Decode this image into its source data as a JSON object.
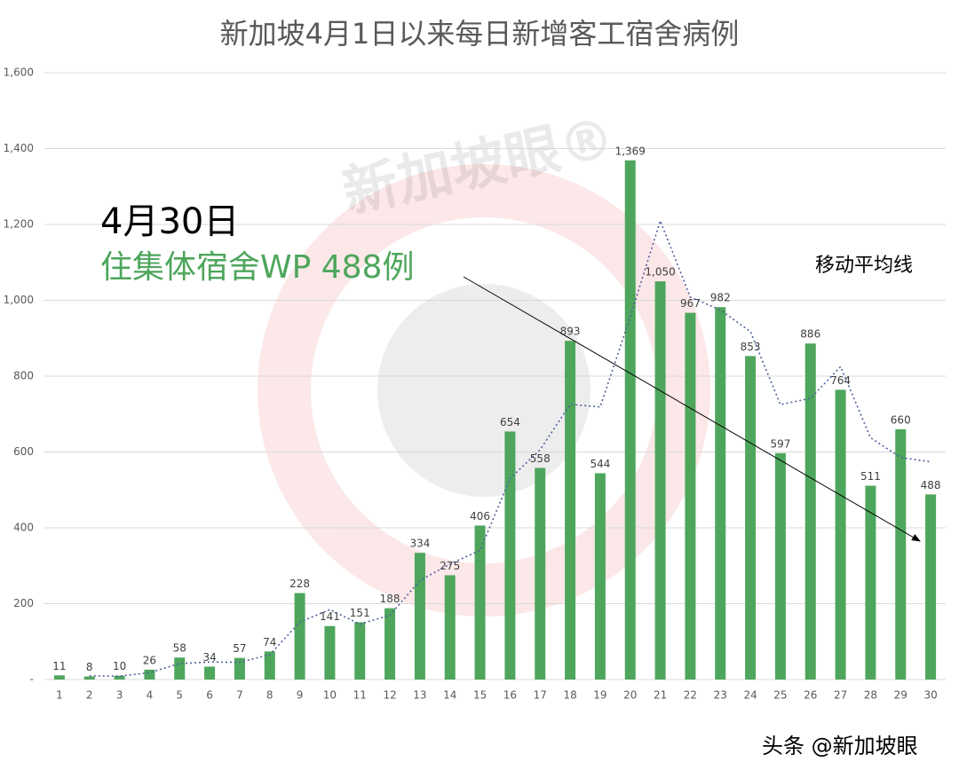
{
  "chart_data": {
    "type": "bar",
    "title": "新加坡4月1日以来每日新增客工宿舍病例",
    "categories": [
      "1",
      "2",
      "3",
      "4",
      "5",
      "6",
      "7",
      "8",
      "9",
      "10",
      "11",
      "12",
      "13",
      "14",
      "15",
      "16",
      "17",
      "18",
      "19",
      "20",
      "21",
      "22",
      "23",
      "24",
      "25",
      "26",
      "27",
      "28",
      "29",
      "30"
    ],
    "series": [
      {
        "type": "bar",
        "color": "#4ea65c",
        "values": [
          11,
          8,
          10,
          26,
          58,
          34,
          57,
          74,
          228,
          141,
          151,
          188,
          334,
          275,
          406,
          654,
          558,
          893,
          544,
          1369,
          1050,
          967,
          982,
          853,
          597,
          886,
          764,
          511,
          660,
          488
        ],
        "value_labels": [
          "11",
          "8",
          "10",
          "26",
          "58",
          "34",
          "57",
          "74",
          "228",
          "141",
          "151",
          "188",
          "334",
          "275",
          "406",
          "654",
          "558",
          "893",
          "544",
          "1,369",
          "1,050",
          "967",
          "982",
          "853",
          "597",
          "886",
          "764",
          "511",
          "660",
          "488"
        ]
      },
      {
        "type": "line",
        "name": "移动平均线",
        "color": "#4f5f9f",
        "dashed": true,
        "values": [
          null,
          9.5,
          9,
          18,
          42,
          46,
          45.5,
          65.5,
          151,
          184.5,
          146,
          169.5,
          261,
          304.5,
          340.5,
          530,
          606,
          725.5,
          718.5,
          956.5,
          1209.5,
          1008.5,
          974.5,
          917.5,
          725,
          741.5,
          825,
          637.5,
          585.5,
          574
        ]
      }
    ],
    "ylim": [
      0,
      1600
    ],
    "yticks": [
      {
        "value": 0,
        "label": "-"
      },
      {
        "value": 200,
        "label": "200"
      },
      {
        "value": 400,
        "label": "400"
      },
      {
        "value": 600,
        "label": "600"
      },
      {
        "value": 800,
        "label": "800"
      },
      {
        "value": 1000,
        "label": "1,000"
      },
      {
        "value": 1200,
        "label": "1,200"
      },
      {
        "value": 1400,
        "label": "1,400"
      },
      {
        "value": 1600,
        "label": "1,600"
      }
    ],
    "grid": true,
    "annotations": {
      "date": "4月30日",
      "note": "住集体宿舍WP 488例"
    },
    "watermarks": {
      "logo": "新加坡眼®",
      "source": "头条 @新加坡眼"
    }
  }
}
